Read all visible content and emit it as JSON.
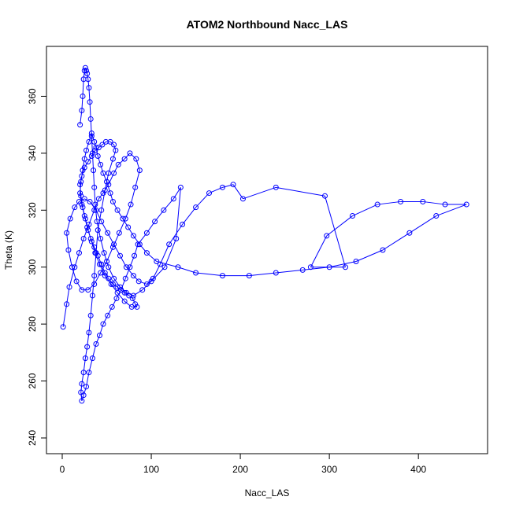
{
  "chart_data": {
    "type": "scatter",
    "mode": "points+lines",
    "title": "ATOM2 Northbound Nacc_LAS",
    "xlabel": "Nacc_LAS",
    "ylabel": "Theta (K)",
    "xlim": [
      0,
      460
    ],
    "ylim": [
      240,
      372
    ],
    "xticks": [
      0,
      100,
      200,
      300,
      400
    ],
    "yticks": [
      240,
      260,
      280,
      300,
      320,
      340,
      360
    ],
    "grid": false,
    "legend": "none",
    "series_color": "#0000ff",
    "series": [
      {
        "x": [
          1,
          5,
          8,
          14,
          19,
          24,
          30,
          36,
          41,
          46,
          52,
          58,
          63,
          70,
          76,
          83,
          87,
          82,
          77,
          71,
          64,
          57,
          50,
          43,
          36,
          29,
          22,
          16,
          11,
          7,
          5,
          9,
          14,
          19,
          25,
          31,
          38,
          44,
          51,
          58,
          65,
          72,
          80,
          86,
          95,
          102,
          110,
          120,
          135,
          150,
          165,
          180,
          192,
          203,
          240,
          295,
          318,
          279,
          297,
          326,
          354,
          380,
          405,
          430,
          454,
          420,
          390,
          360,
          330,
          300,
          270,
          240,
          210,
          180,
          150,
          130,
          106,
          95,
          87,
          80,
          74,
          68,
          62,
          57,
          54,
          50,
          46,
          43,
          40,
          38,
          36,
          33,
          30,
          27,
          25,
          23,
          21,
          20,
          22,
          25,
          28,
          32,
          36,
          40,
          44,
          48,
          52,
          57,
          62,
          66,
          70,
          75,
          79,
          82,
          84,
          78,
          70,
          62,
          55,
          48,
          42,
          37,
          33,
          29,
          26,
          23,
          21,
          20,
          22,
          25,
          29,
          33,
          37,
          41,
          45,
          49,
          54,
          58,
          60,
          57,
          52,
          48,
          44,
          40,
          38,
          36,
          34,
          32,
          30,
          28,
          26,
          24,
          22,
          21,
          22,
          24,
          27,
          30,
          34,
          38,
          42,
          46,
          51,
          56,
          61,
          66,
          71,
          76,
          81,
          85,
          95,
          104,
          114,
          125,
          133,
          128,
          115,
          100,
          90,
          80,
          72,
          65,
          58,
          52,
          47,
          43,
          39,
          37,
          36,
          35,
          34,
          33,
          32,
          31,
          30,
          29,
          28,
          27,
          26,
          25,
          24,
          23,
          22,
          20
        ],
        "y": [
          279,
          287,
          293,
          300,
          305,
          310,
          315,
          320,
          324,
          326,
          329,
          333,
          336,
          338,
          340,
          338,
          334,
          328,
          322,
          317,
          312,
          307,
          302,
          298,
          294,
          292,
          292,
          295,
          300,
          306,
          312,
          317,
          321,
          323,
          324,
          323,
          320,
          316,
          312,
          308,
          304,
          300,
          297,
          295,
          294,
          296,
          301,
          308,
          315,
          321,
          326,
          328,
          329,
          324,
          328,
          325,
          300,
          300,
          311,
          318,
          322,
          323,
          323,
          322,
          322,
          318,
          312,
          306,
          302,
          300,
          299,
          298,
          297,
          297,
          298,
          300,
          302,
          305,
          308,
          311,
          314,
          317,
          320,
          323,
          326,
          330,
          333,
          336,
          339,
          342,
          344,
          347,
          344,
          341,
          338,
          334,
          330,
          326,
          322,
          318,
          314,
          310,
          307,
          304,
          301,
          298,
          296,
          294,
          293,
          292,
          291,
          290,
          289,
          287,
          286,
          286,
          288,
          291,
          294,
          297,
          301,
          305,
          309,
          313,
          317,
          321,
          325,
          329,
          332,
          335,
          337,
          339,
          341,
          342,
          343,
          344,
          344,
          343,
          341,
          338,
          333,
          327,
          320,
          313,
          305,
          297,
          290,
          283,
          277,
          272,
          268,
          263,
          259,
          256,
          253,
          255,
          258,
          263,
          268,
          273,
          276,
          280,
          283,
          286,
          289,
          292,
          296,
          300,
          304,
          308,
          312,
          316,
          320,
          324,
          328,
          310,
          300,
          295,
          292,
          290,
          291,
          293,
          296,
          300,
          305,
          310,
          316,
          322,
          328,
          334,
          340,
          346,
          352,
          358,
          363,
          366,
          368,
          369,
          370,
          369,
          366,
          360,
          355,
          350
        ]
      }
    ]
  }
}
